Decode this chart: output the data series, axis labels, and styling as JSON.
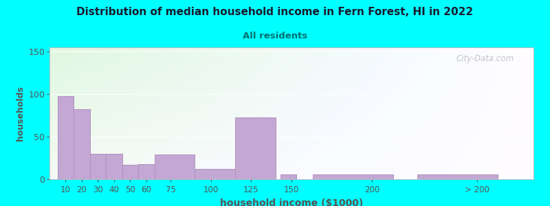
{
  "title": "Distribution of median household income in Fern Forest, HI in 2022",
  "subtitle": "All residents",
  "xlabel": "household income ($1000)",
  "ylabel": "households",
  "bar_color": "#c4a8d4",
  "bar_edgecolor": "#b090be",
  "background_outer": "#00ffff",
  "title_color": "#1a1a2e",
  "subtitle_color": "#007070",
  "axis_label_color": "#555555",
  "tick_color": "#555555",
  "values": [
    98,
    82,
    30,
    30,
    17,
    18,
    29,
    12,
    73,
    6,
    6,
    6
  ],
  "bar_widths": [
    10,
    10,
    10,
    10,
    10,
    15,
    25,
    25,
    25,
    10,
    50,
    50
  ],
  "bar_lefts": [
    5,
    15,
    25,
    35,
    45,
    55,
    65,
    90,
    115,
    143,
    163,
    228
  ],
  "xlim": [
    0,
    300
  ],
  "ylim": [
    0,
    155
  ],
  "yticks": [
    0,
    50,
    100,
    150
  ],
  "xtick_positions": [
    10,
    20,
    30,
    40,
    50,
    60,
    75,
    100,
    125,
    150,
    200,
    265
  ],
  "xtick_labels": [
    "10",
    "20",
    "30",
    "40",
    "50",
    "60",
    "75",
    "100",
    "125",
    "150",
    "200",
    "> 200"
  ],
  "watermark": "City-Data.com",
  "figsize": [
    8.0,
    3.0
  ],
  "dpi": 100
}
